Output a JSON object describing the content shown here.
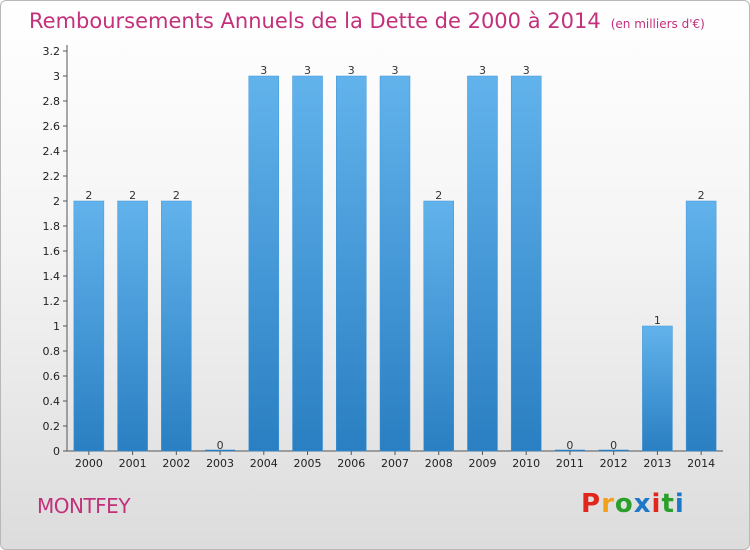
{
  "header": {
    "title": "Remboursements Annuels de la Dette de 2000 à 2014",
    "unit": "(en milliers d'€)"
  },
  "footer": {
    "commune": "MONTFEY",
    "logo_text": "Proxiti"
  },
  "colors": {
    "title": "#c3307b",
    "bar_top": "#62b3ec",
    "bar_bottom": "#2a7fc2",
    "logo": [
      "#e2261c",
      "#f4a11a",
      "#2aa02a",
      "#1e78c8",
      "#e2261c",
      "#2aa02a",
      "#1e78c8"
    ]
  },
  "chart_data": {
    "type": "bar",
    "title": "Remboursements Annuels de la Dette de 2000 à 2014",
    "subtitle": "(en milliers d'€)",
    "categories": [
      "2000",
      "2001",
      "2002",
      "2003",
      "2004",
      "2005",
      "2006",
      "2007",
      "2008",
      "2009",
      "2010",
      "2011",
      "2012",
      "2013",
      "2014"
    ],
    "values": [
      2,
      2,
      2,
      0,
      3,
      3,
      3,
      3,
      2,
      3,
      3,
      0,
      0,
      1,
      2
    ],
    "data_labels": [
      "2",
      "2",
      "2",
      "0",
      "3",
      "3",
      "3",
      "3",
      "2",
      "3",
      "3",
      "0",
      "0",
      "1",
      "2"
    ],
    "yticks": [
      "0",
      "0.2",
      "0.4",
      "0.6",
      "0.8",
      "1",
      "1.2",
      "1.4",
      "1.6",
      "1.8",
      "2",
      "2.2",
      "2.4",
      "2.6",
      "2.8",
      "3",
      "3.2"
    ],
    "ylim": [
      0,
      3.2
    ],
    "grid": false,
    "legend": "none"
  }
}
